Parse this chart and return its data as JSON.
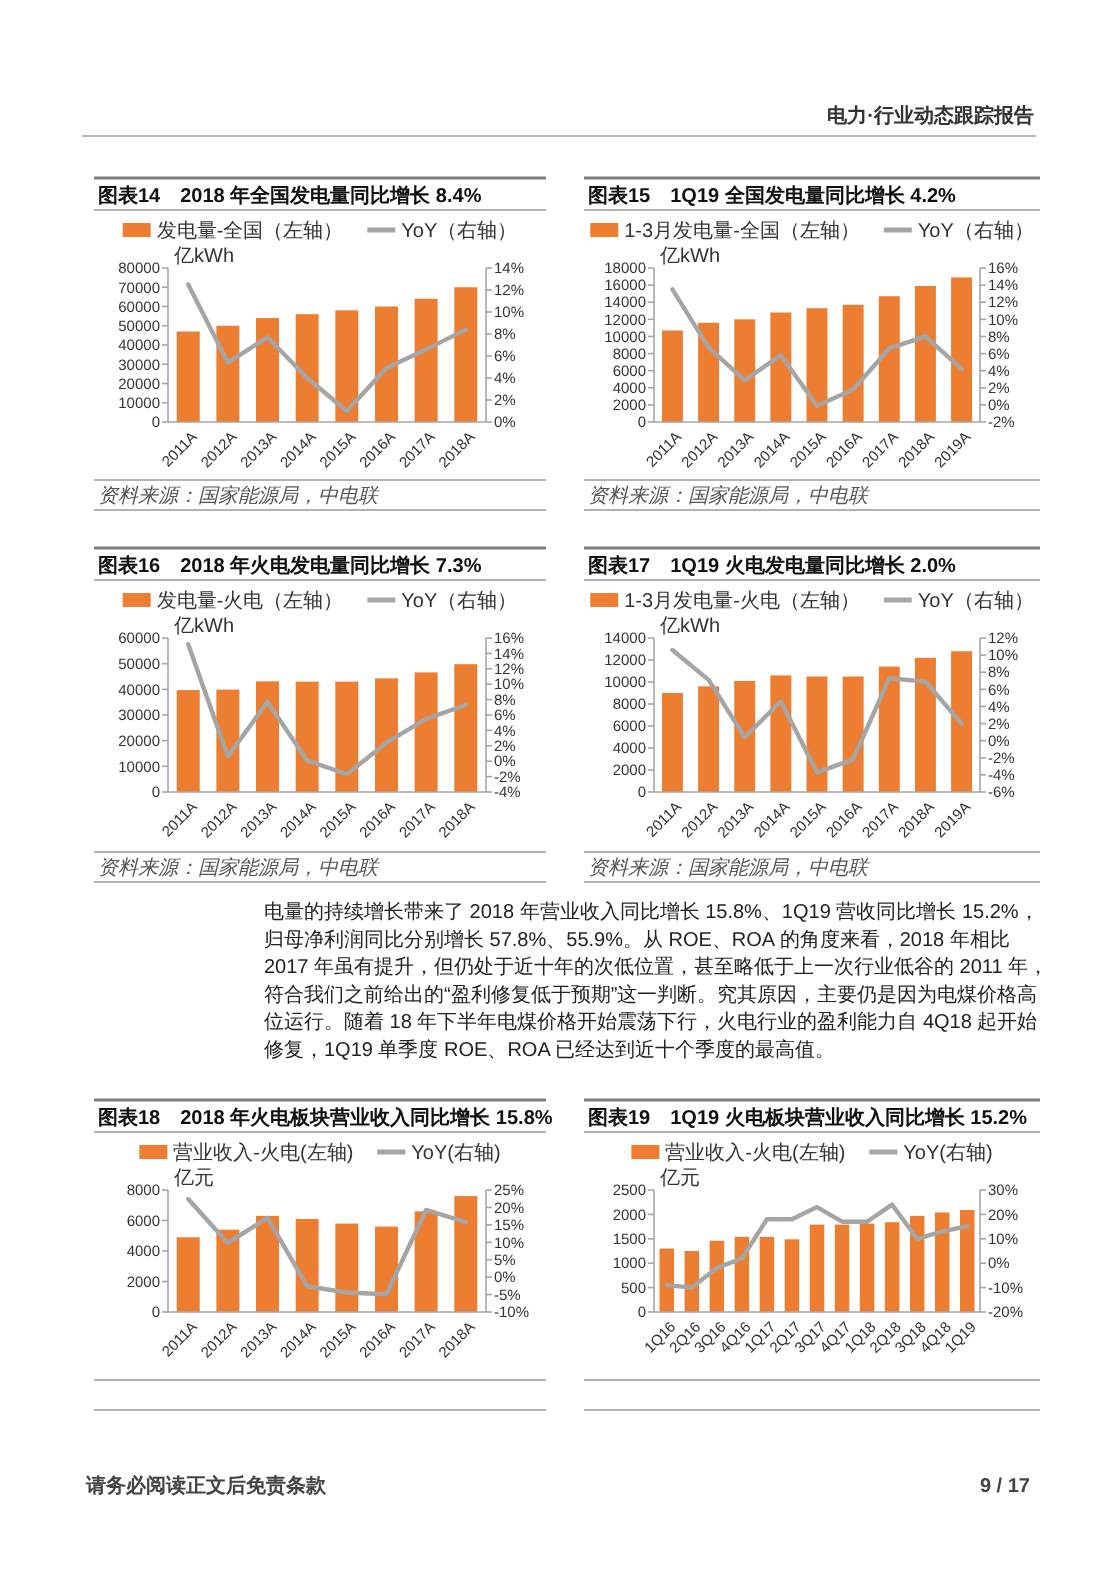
{
  "chart_data": [
    {
      "type": "other",
      "annotations": [
        "电力·行业动态跟踪报告"
      ]
    },
    {
      "type": "bar",
      "title": "图表14",
      "subtitle": "2018 年全国发电量同比增长 8.4%",
      "ylabel": "亿kWh",
      "categories": [
        "2011A",
        "2012A",
        "2013A",
        "2014A",
        "2015A",
        "2016A",
        "2017A",
        "2018A"
      ],
      "series": [
        {
          "name": "发电量-全国（左轴）",
          "type": "bar",
          "color": "#ed7d31",
          "values": [
            47000,
            50000,
            54000,
            56000,
            58000,
            60000,
            64000,
            70000
          ]
        },
        {
          "name": "YoY（右轴）",
          "type": "line",
          "axis": "y2",
          "color": "#a5a5a5",
          "values": [
            12.5,
            5.4,
            7.7,
            4.0,
            1.0,
            4.9,
            6.6,
            8.4
          ]
        }
      ],
      "ylim": [
        0,
        80000
      ],
      "yticks": [
        0,
        10000,
        20000,
        30000,
        40000,
        50000,
        60000,
        70000,
        80000
      ],
      "y2lim": [
        0,
        14
      ],
      "y2ticks": [
        {
          "value": 0,
          "label": "0%"
        },
        {
          "value": 2,
          "label": "2%"
        },
        {
          "value": 4,
          "label": "4%"
        },
        {
          "value": 6,
          "label": "6%"
        },
        {
          "value": 8,
          "label": "8%"
        },
        {
          "value": 10,
          "label": "10%"
        },
        {
          "value": 12,
          "label": "12%"
        },
        {
          "value": 14,
          "label": "14%"
        }
      ],
      "legend": "top",
      "annotations": [
        "资料来源：国家能源局，中电联"
      ]
    },
    {
      "type": "bar",
      "title": "图表15",
      "subtitle": "1Q19 全国发电量同比增长 4.2%",
      "ylabel": "亿kWh",
      "categories": [
        "2011A",
        "2012A",
        "2013A",
        "2014A",
        "2015A",
        "2016A",
        "2017A",
        "2018A",
        "2019A"
      ],
      "series": [
        {
          "name": "1-3月发电量-全国（左轴）",
          "type": "bar",
          "color": "#ed7d31",
          "values": [
            10700,
            11600,
            12000,
            12800,
            13300,
            13700,
            14700,
            15900,
            16900
          ]
        },
        {
          "name": "YoY（右轴）",
          "type": "line",
          "axis": "y2",
          "color": "#a5a5a5",
          "values": [
            13.5,
            6.7,
            2.9,
            5.8,
            -0.1,
            1.8,
            6.6,
            8.0,
            4.2
          ]
        }
      ],
      "ylim": [
        0,
        18000
      ],
      "yticks": [
        0,
        2000,
        4000,
        6000,
        8000,
        10000,
        12000,
        14000,
        16000,
        18000
      ],
      "y2lim": [
        -2,
        16
      ],
      "y2ticks": [
        {
          "value": -2,
          "label": "-2%"
        },
        {
          "value": 0,
          "label": "0%"
        },
        {
          "value": 2,
          "label": "2%"
        },
        {
          "value": 4,
          "label": "4%"
        },
        {
          "value": 6,
          "label": "6%"
        },
        {
          "value": 8,
          "label": "8%"
        },
        {
          "value": 10,
          "label": "10%"
        },
        {
          "value": 12,
          "label": "12%"
        },
        {
          "value": 14,
          "label": "14%"
        },
        {
          "value": 16,
          "label": "16%"
        }
      ],
      "legend": "top",
      "annotations": [
        "资料来源：国家能源局，中电联"
      ]
    },
    {
      "type": "bar",
      "title": "图表16",
      "subtitle": "2018 年火电发电量同比增长 7.3%",
      "ylabel": "亿kWh",
      "categories": [
        "2011A",
        "2012A",
        "2013A",
        "2014A",
        "2015A",
        "2016A",
        "2017A",
        "2018A"
      ],
      "series": [
        {
          "name": "发电量-火电（左轴）",
          "type": "bar",
          "color": "#ed7d31",
          "values": [
            39700,
            39900,
            43100,
            43000,
            43000,
            44300,
            46600,
            49800
          ]
        },
        {
          "name": "YoY（右轴）",
          "type": "line",
          "axis": "y2",
          "color": "#a5a5a5",
          "values": [
            15.2,
            0.6,
            7.7,
            0.1,
            -1.7,
            2.4,
            5.5,
            7.3
          ]
        }
      ],
      "ylim": [
        0,
        60000
      ],
      "yticks": [
        0,
        10000,
        20000,
        30000,
        40000,
        50000,
        60000
      ],
      "y2lim": [
        -4,
        16
      ],
      "y2ticks": [
        {
          "value": -4,
          "label": "-4%"
        },
        {
          "value": -2,
          "label": "-2%"
        },
        {
          "value": 0,
          "label": "0%"
        },
        {
          "value": 2,
          "label": "2%"
        },
        {
          "value": 4,
          "label": "4%"
        },
        {
          "value": 6,
          "label": "6%"
        },
        {
          "value": 8,
          "label": "8%"
        },
        {
          "value": 10,
          "label": "10%"
        },
        {
          "value": 12,
          "label": "12%"
        },
        {
          "value": 14,
          "label": "14%"
        },
        {
          "value": 16,
          "label": "16%"
        }
      ],
      "legend": "top",
      "annotations": [
        "资料来源：国家能源局，中电联"
      ]
    },
    {
      "type": "bar",
      "title": "图表17",
      "subtitle": "1Q19 火电发电量同比增长 2.0%",
      "ylabel": "亿kWh",
      "categories": [
        "2011A",
        "2012A",
        "2013A",
        "2014A",
        "2015A",
        "2016A",
        "2017A",
        "2018A",
        "2019A"
      ],
      "series": [
        {
          "name": "1-3月发电量-火电（左轴）",
          "type": "bar",
          "color": "#ed7d31",
          "values": [
            9000,
            9600,
            10100,
            10600,
            10500,
            10500,
            11400,
            12200,
            12800
          ]
        },
        {
          "name": "YoY（右轴）",
          "type": "line",
          "axis": "y2",
          "color": "#a5a5a5",
          "values": [
            10.6,
            7.1,
            0.4,
            4.6,
            -3.7,
            -2.2,
            7.3,
            6.9,
            2.0
          ]
        }
      ],
      "ylim": [
        0,
        14000
      ],
      "yticks": [
        0,
        2000,
        4000,
        6000,
        8000,
        10000,
        12000,
        14000
      ],
      "y2lim": [
        -6,
        12
      ],
      "y2ticks": [
        {
          "value": -6,
          "label": "-6%"
        },
        {
          "value": -4,
          "label": "-4%"
        },
        {
          "value": -2,
          "label": "-2%"
        },
        {
          "value": 0,
          "label": "0%"
        },
        {
          "value": 2,
          "label": "2%"
        },
        {
          "value": 4,
          "label": "4%"
        },
        {
          "value": 6,
          "label": "6%"
        },
        {
          "value": 8,
          "label": "8%"
        },
        {
          "value": 10,
          "label": "10%"
        },
        {
          "value": 12,
          "label": "12%"
        }
      ],
      "legend": "top",
      "annotations": [
        "资料来源：国家能源局，中电联"
      ]
    },
    {
      "type": "other",
      "annotations": [
        "电量的持续增长带来了 2018 年营业收入同比增长 15.8%、1Q19 营收同比增长 15.2%，归母净利润同比分别增长 57.8%、55.9%。从 ROE、ROA 的角度来看，2018 年相比 2017 年虽有提升，但仍处于近十年的次低位置，甚至略低于上一次行业低谷的 2011 年，符合我们之前给出的“盈利修复低于预期”这一判断。究其原因，主要仍是因为电煤价格高位运行。随着 18 年下半年电煤价格开始震荡下行，火电行业的盈利能力自 4Q18 起开始修复，1Q19 单季度 ROE、ROA 已经达到近十个季度的最高值。"
      ]
    },
    {
      "type": "bar",
      "title": "图表18",
      "subtitle": "2018 年火电板块营业收入同比增长 15.8%",
      "ylabel": "亿元",
      "categories": [
        "2011A",
        "2012A",
        "2013A",
        "2014A",
        "2015A",
        "2016A",
        "2017A",
        "2018A"
      ],
      "series": [
        {
          "name": "营业收入-火电(左轴)",
          "type": "bar",
          "color": "#ed7d31",
          "values": [
            4900,
            5400,
            6300,
            6100,
            5800,
            5600,
            6600,
            7600
          ]
        },
        {
          "name": "YoY(右轴)",
          "type": "line",
          "axis": "y2",
          "color": "#a5a5a5",
          "values": [
            22.4,
            9.8,
            17.0,
            -2.6,
            -4.4,
            -4.9,
            19.3,
            15.8
          ]
        }
      ],
      "ylim": [
        0,
        8000
      ],
      "yticks": [
        0,
        2000,
        4000,
        6000,
        8000
      ],
      "y2lim": [
        -10,
        25
      ],
      "y2ticks": [
        {
          "value": -10,
          "label": "-10%"
        },
        {
          "value": -5,
          "label": "-5%"
        },
        {
          "value": 0,
          "label": "0%"
        },
        {
          "value": 5,
          "label": "5%"
        },
        {
          "value": 10,
          "label": "10%"
        },
        {
          "value": 15,
          "label": "15%"
        },
        {
          "value": 20,
          "label": "20%"
        },
        {
          "value": 25,
          "label": "25%"
        }
      ],
      "legend": "top"
    },
    {
      "type": "bar",
      "title": "图表19",
      "subtitle": "1Q19 火电板块营业收入同比增长 15.2%",
      "ylabel": "亿元",
      "categories": [
        "1Q16",
        "2Q16",
        "3Q16",
        "4Q16",
        "1Q17",
        "2Q17",
        "3Q17",
        "4Q17",
        "1Q18",
        "2Q18",
        "3Q18",
        "4Q18",
        "1Q19"
      ],
      "series": [
        {
          "name": "营业收入-火电(左轴)",
          "type": "bar",
          "color": "#ed7d31",
          "values": [
            1300,
            1250,
            1460,
            1540,
            1540,
            1490,
            1790,
            1790,
            1810,
            1840,
            1970,
            2040,
            2090
          ]
        },
        {
          "name": "YoY(右轴)",
          "type": "line",
          "axis": "y2",
          "color": "#a5a5a5",
          "values": [
            -9,
            -10,
            -2,
            2,
            18,
            18,
            23,
            17,
            17,
            24,
            10,
            13,
            15.2
          ]
        }
      ],
      "ylim": [
        0,
        2500
      ],
      "yticks": [
        0,
        500,
        1000,
        1500,
        2000,
        2500
      ],
      "y2lim": [
        -20,
        30
      ],
      "y2ticks": [
        {
          "value": -20,
          "label": "-20%"
        },
        {
          "value": -10,
          "label": "-10%"
        },
        {
          "value": 0,
          "label": "0%"
        },
        {
          "value": 10,
          "label": "10%"
        },
        {
          "value": 20,
          "label": "20%"
        },
        {
          "value": 30,
          "label": "30%"
        }
      ],
      "legend": "top"
    },
    {
      "type": "other",
      "annotations": [
        "请务必阅读正文后免责条款",
        "9 / 17"
      ]
    }
  ]
}
